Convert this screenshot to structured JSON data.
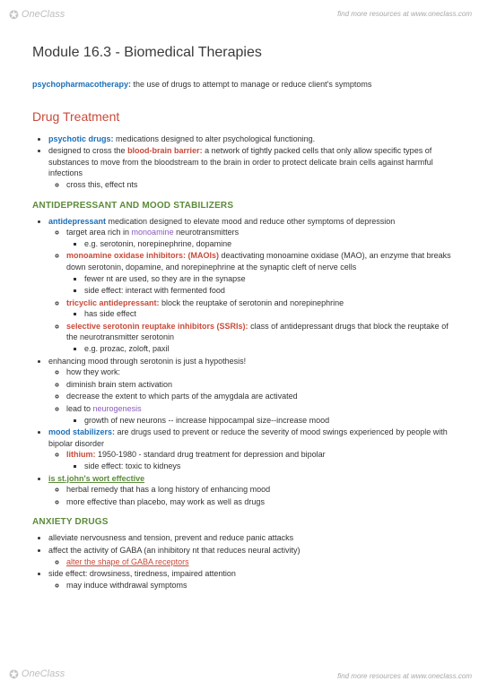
{
  "watermark": {
    "brand": "OneClass",
    "resource_text": "find more resources at www.oneclass.com"
  },
  "title": "Module 16.3 - Biomedical Therapies",
  "intro": {
    "term": "psychopharmacotherapy:",
    "def": " the use of drugs to attempt to manage or reduce client's symptoms"
  },
  "section1": {
    "heading": "Drug Treatment",
    "b1_term": "psychotic drugs:",
    "b1_def": " medications designed to alter psychological functioning.",
    "b2_pre": "designed to cross the ",
    "b2_term": "blood-brain barrier:",
    "b2_def": " a network of tightly packed cells that only allow specific types of substances to move from the bloodstream to the brain in order to protect delicate brain cells against harmful infections",
    "b2_sub1": "cross this, effect nts"
  },
  "subA": {
    "heading": "ANTIDEPRESSANT AND MOOD STABILIZERS",
    "a1_term": "antidepressant",
    "a1_def": " medication designed to elevate mood and reduce other symptoms of depression",
    "a1_s1_pre": "target area rich in ",
    "a1_s1_purple": "monoamine",
    "a1_s1_post": " neurotransmitters",
    "a1_s1a": "e.g. serotonin, norepinephrine, dopamine",
    "a1_s2_term": "monoamine oxidase inhibitors: (MAOIs)",
    "a1_s2_def": " deactivating monoamine oxidase (MAO), an enzyme that breaks down serotonin, dopamine, and norepinephrine at the synaptic cleft of nerve cells",
    "a1_s2a": "fewer nt are used, so they are in the synapse",
    "a1_s2b": "side effect: interact with fermented food",
    "a1_s3_term": "tricyclic antidepressant:",
    "a1_s3_def": " block the reuptake of serotonin and norepinephrine",
    "a1_s3a": "has side effect",
    "a1_s4_term": "selective serotonin reuptake inhibitors (SSRIs):",
    "a1_s4_def": " class of antidepressant drugs that block the reuptake of the neurotransmitter serotonin",
    "a1_s4a": "e.g. prozac, zoloft, paxil",
    "a2": "enhancing mood through serotonin is just a hypothesis!",
    "a2_s1": "how they work:",
    "a2_s2": "diminish brain stem activation",
    "a2_s3": "decrease the extent to which parts of the amygdala are activated",
    "a2_s4_pre": "lead to ",
    "a2_s4_purple": "neurogenesis",
    "a2_s4a": "growth of new neurons -- increase hippocampal size--increase mood",
    "a3_term": "mood stabilizers:",
    "a3_def": " are drugs used to prevent or reduce the severity of mood swings experienced by people with bipolar disorder",
    "a3_s1_term": "lithium:",
    "a3_s1_def": " 1950-1980 - standard drug treatment for depression and bipolar",
    "a3_s1a": "side effect: toxic to kidneys",
    "a4_term": "is st.john's wort effective",
    "a4_s1": "herbal remedy that has a long history of enhancing mood",
    "a4_s2": "more effective than placebo, may work as well as drugs"
  },
  "subB": {
    "heading": "ANXIETY DRUGS",
    "b1": "alleviate nervousness and tension, prevent and reduce panic attacks",
    "b2": "affect the activity of GABA (an inhibitory nt that reduces neural activity)",
    "b2_s1": "alter the shape of GABA receptors",
    "b3": "side effect: drowsiness, tiredness, impaired attention",
    "b3_s1": "may induce withdrawal symptoms"
  }
}
